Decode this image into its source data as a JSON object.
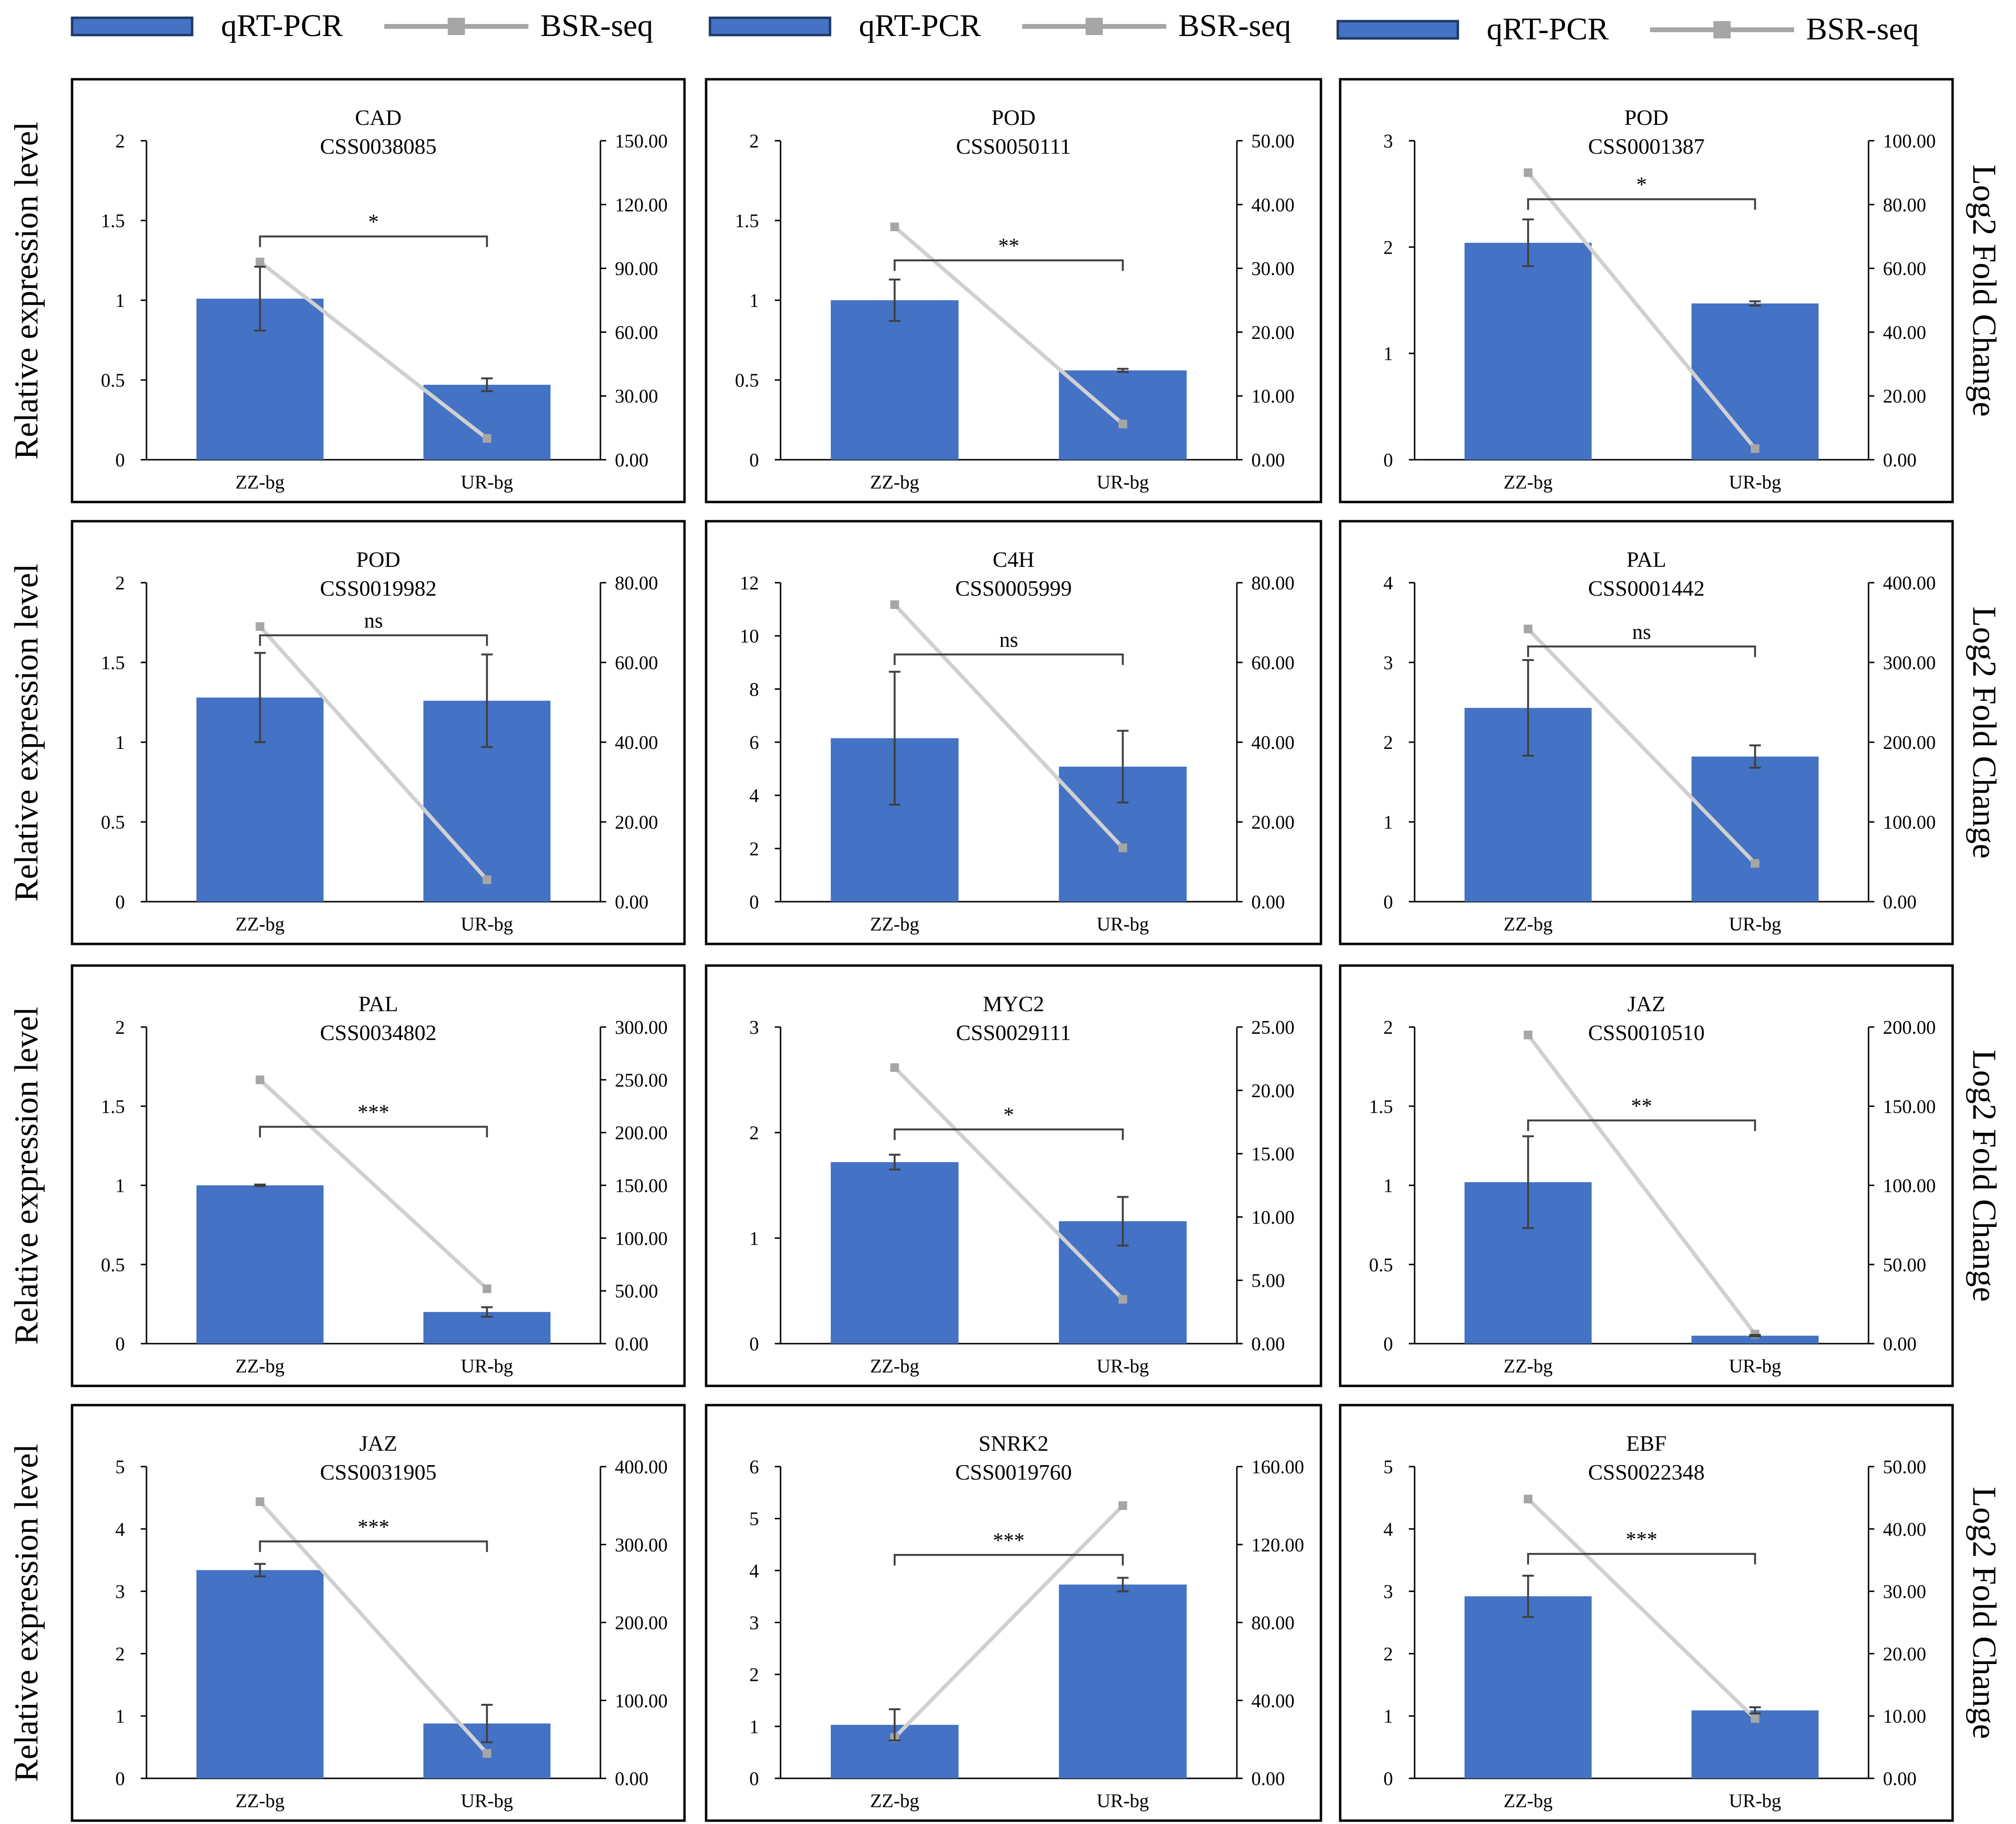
{
  "figure": {
    "legend_groups": [
      {
        "bar_label": "qRT-PCR",
        "line_label": "BSR-seq"
      },
      {
        "bar_label": "qRT-PCR",
        "line_label": "BSR-seq"
      },
      {
        "bar_label": "qRT-PCR",
        "line_label": "BSR-seq"
      }
    ],
    "left_axis_title": "Relative expression level",
    "right_axis_title": "Log2 Fold Change",
    "colors": {
      "bar": "#4472C4",
      "line": "#D0D0D0",
      "marker": "#A6A6A6",
      "error": "#404040",
      "frame": "#000000"
    }
  },
  "chart_data": [
    {
      "type": "bar+line",
      "gene": "CAD",
      "id": "CSS0038085",
      "categories": [
        "ZZ-bg",
        "UR-bg"
      ],
      "bars": [
        1.01,
        0.47
      ],
      "errors": [
        0.2,
        0.04
      ],
      "line": [
        93,
        10
      ],
      "ylim": [
        0,
        2
      ],
      "yticks": [
        "0",
        "0.5",
        "1",
        "1.5",
        "2"
      ],
      "y2lim": [
        0,
        150
      ],
      "y2ticks": [
        "0.00",
        "30.00",
        "60.00",
        "90.00",
        "120.00",
        "150.00"
      ],
      "sig": "*",
      "sig_y": 1.4
    },
    {
      "type": "bar+line",
      "gene": "POD",
      "id": "CSS0050111",
      "categories": [
        "ZZ-bg",
        "UR-bg"
      ],
      "bars": [
        1.0,
        0.56
      ],
      "errors": [
        0.13,
        0.01
      ],
      "line": [
        36.5,
        5.6
      ],
      "ylim": [
        0,
        2
      ],
      "yticks": [
        "0",
        "0.5",
        "1",
        "1.5",
        "2"
      ],
      "y2lim": [
        0,
        50
      ],
      "y2ticks": [
        "0.00",
        "10.00",
        "20.00",
        "30.00",
        "40.00",
        "50.00"
      ],
      "sig": "**",
      "sig_y": 1.25
    },
    {
      "type": "bar+line",
      "gene": "POD",
      "id": "CSS0001387",
      "categories": [
        "ZZ-bg",
        "UR-bg"
      ],
      "bars": [
        2.04,
        1.47
      ],
      "errors": [
        0.22,
        0.02
      ],
      "line": [
        90,
        3.5
      ],
      "ylim": [
        0,
        3
      ],
      "yticks": [
        "0",
        "1",
        "2",
        "3"
      ],
      "y2lim": [
        0,
        100
      ],
      "y2ticks": [
        "0.00",
        "20.00",
        "40.00",
        "60.00",
        "80.00",
        "100.00"
      ],
      "sig": "*",
      "sig_y": 2.45
    },
    {
      "type": "bar+line",
      "gene": "POD",
      "id": "CSS0019982",
      "categories": [
        "ZZ-bg",
        "UR-bg"
      ],
      "bars": [
        1.28,
        1.26
      ],
      "errors": [
        0.28,
        0.29
      ],
      "line": [
        69,
        5.5
      ],
      "ylim": [
        0,
        2
      ],
      "yticks": [
        "0",
        "0.5",
        "1",
        "1.5",
        "2"
      ],
      "y2lim": [
        0,
        80
      ],
      "y2ticks": [
        "0.00",
        "20.00",
        "40.00",
        "60.00",
        "80.00"
      ],
      "sig": "ns",
      "sig_y": 1.67
    },
    {
      "type": "bar+line",
      "gene": "C4H",
      "id": "CSS0005999",
      "categories": [
        "ZZ-bg",
        "UR-bg"
      ],
      "bars": [
        6.15,
        5.08
      ],
      "errors": [
        2.5,
        1.35
      ],
      "line": [
        74.5,
        13.5
      ],
      "ylim": [
        0,
        12
      ],
      "yticks": [
        "0",
        "2",
        "4",
        "6",
        "8",
        "10",
        "12"
      ],
      "y2lim": [
        0,
        80
      ],
      "y2ticks": [
        "0.00",
        "20.00",
        "40.00",
        "60.00",
        "80.00"
      ],
      "sig": "ns",
      "sig_y": 9.3
    },
    {
      "type": "bar+line",
      "gene": "PAL",
      "id": "CSS0001442",
      "categories": [
        "ZZ-bg",
        "UR-bg"
      ],
      "bars": [
        2.43,
        1.82
      ],
      "errors": [
        0.6,
        0.14
      ],
      "line": [
        342,
        48
      ],
      "ylim": [
        0,
        4
      ],
      "yticks": [
        "0",
        "1",
        "2",
        "3",
        "4"
      ],
      "y2lim": [
        0,
        400
      ],
      "y2ticks": [
        "0.00",
        "100.00",
        "200.00",
        "300.00",
        "400.00"
      ],
      "sig": "ns",
      "sig_y": 3.2
    },
    {
      "type": "bar+line",
      "gene": "PAL",
      "id": "CSS0034802",
      "categories": [
        "ZZ-bg",
        "UR-bg"
      ],
      "bars": [
        1.0,
        0.2
      ],
      "errors": [
        0.005,
        0.03
      ],
      "line": [
        250,
        52
      ],
      "ylim": [
        0,
        2
      ],
      "yticks": [
        "0",
        "0.5",
        "1",
        "1.5",
        "2"
      ],
      "y2lim": [
        0,
        300
      ],
      "y2ticks": [
        "0.00",
        "50.00",
        "100.00",
        "150.00",
        "200.00",
        "250.00",
        "300.00"
      ],
      "sig": "***",
      "sig_y": 1.37
    },
    {
      "type": "bar+line",
      "gene": "MYC2",
      "id": "CSS0029111",
      "categories": [
        "ZZ-bg",
        "UR-bg"
      ],
      "bars": [
        1.72,
        1.16
      ],
      "errors": [
        0.07,
        0.23
      ],
      "line": [
        21.8,
        3.5
      ],
      "ylim": [
        0,
        3
      ],
      "yticks": [
        "0",
        "1",
        "2",
        "3"
      ],
      "y2lim": [
        0,
        25
      ],
      "y2ticks": [
        "0.00",
        "5.00",
        "10.00",
        "15.00",
        "20.00",
        "25.00"
      ],
      "sig": "*",
      "sig_y": 2.03
    },
    {
      "type": "bar+line",
      "gene": "JAZ",
      "id": "CSS0010510",
      "categories": [
        "ZZ-bg",
        "UR-bg"
      ],
      "bars": [
        1.02,
        0.05
      ],
      "errors": [
        0.29,
        0.005
      ],
      "line": [
        195,
        6
      ],
      "ylim": [
        0,
        2
      ],
      "yticks": [
        "0",
        "0.5",
        "1",
        "1.5",
        "2"
      ],
      "y2lim": [
        0,
        200
      ],
      "y2ticks": [
        "0.00",
        "50.00",
        "100.00",
        "150.00",
        "200.00"
      ],
      "sig": "**",
      "sig_y": 1.41
    },
    {
      "type": "bar+line",
      "gene": "JAZ",
      "id": "CSS0031905",
      "categories": [
        "ZZ-bg",
        "UR-bg"
      ],
      "bars": [
        3.34,
        0.88
      ],
      "errors": [
        0.1,
        0.3
      ],
      "line": [
        355,
        32
      ],
      "ylim": [
        0,
        5
      ],
      "yticks": [
        "0",
        "1",
        "2",
        "3",
        "4",
        "5"
      ],
      "y2lim": [
        0,
        400
      ],
      "y2ticks": [
        "0.00",
        "100.00",
        "200.00",
        "300.00",
        "400.00"
      ],
      "sig": "***",
      "sig_y": 3.8
    },
    {
      "type": "bar+line",
      "gene": "SNRK2",
      "id": "CSS0019760",
      "categories": [
        "ZZ-bg",
        "UR-bg"
      ],
      "bars": [
        1.03,
        3.73
      ],
      "errors": [
        0.3,
        0.13
      ],
      "line": [
        21,
        140
      ],
      "ylim": [
        0,
        6
      ],
      "yticks": [
        "0",
        "1",
        "2",
        "3",
        "4",
        "5",
        "6"
      ],
      "y2lim": [
        0,
        160
      ],
      "y2ticks": [
        "0.00",
        "40.00",
        "80.00",
        "120.00",
        "160.00"
      ],
      "sig": "***",
      "sig_y": 4.3
    },
    {
      "type": "bar+line",
      "gene": "EBF",
      "id": "CSS0022348",
      "categories": [
        "ZZ-bg",
        "UR-bg"
      ],
      "bars": [
        2.92,
        1.09
      ],
      "errors": [
        0.33,
        0.05
      ],
      "line": [
        44.8,
        9.6
      ],
      "ylim": [
        0,
        5
      ],
      "yticks": [
        "0",
        "1",
        "2",
        "3",
        "4",
        "5"
      ],
      "y2lim": [
        0,
        50
      ],
      "y2ticks": [
        "0.00",
        "10.00",
        "20.00",
        "30.00",
        "40.00",
        "50.00"
      ],
      "sig": "***",
      "sig_y": 3.6
    }
  ]
}
